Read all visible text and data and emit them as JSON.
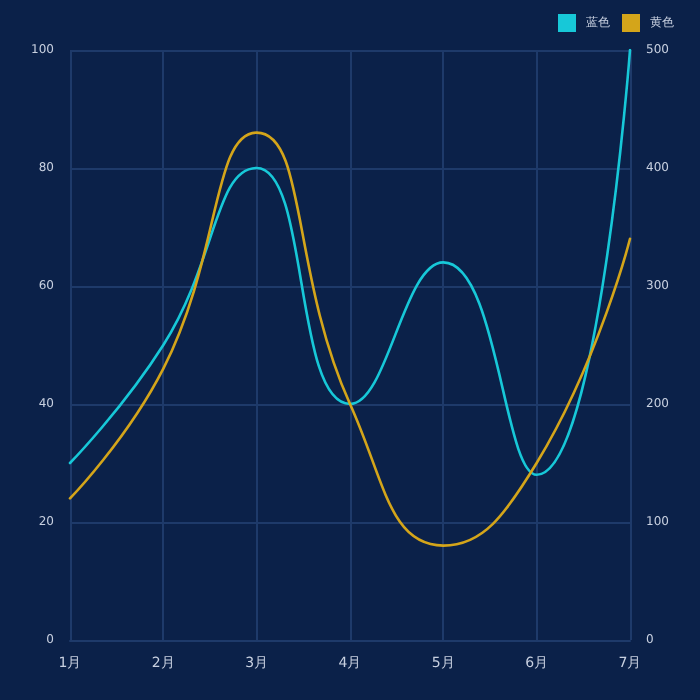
{
  "chart_data": {
    "type": "line",
    "categories": [
      "1月",
      "2月",
      "3月",
      "4月",
      "5月",
      "6月",
      "7月"
    ],
    "series": [
      {
        "name": "蓝色",
        "color": "#17c8d8",
        "values": [
          30,
          50,
          80,
          40,
          64,
          28,
          100
        ]
      },
      {
        "name": "黄色",
        "color": "#d4a51a",
        "axis": "y2",
        "values": [
          120,
          230,
          430,
          200,
          80,
          150,
          340
        ]
      }
    ],
    "ylim": [
      0,
      100
    ],
    "yticks": [
      0,
      20,
      40,
      60,
      80,
      100
    ],
    "y2lim": [
      0,
      500
    ],
    "y2ticks": [
      0,
      100,
      200,
      300,
      400,
      500
    ],
    "grid": true,
    "legend": "top right",
    "marker": "none",
    "line_style": "solid"
  }
}
